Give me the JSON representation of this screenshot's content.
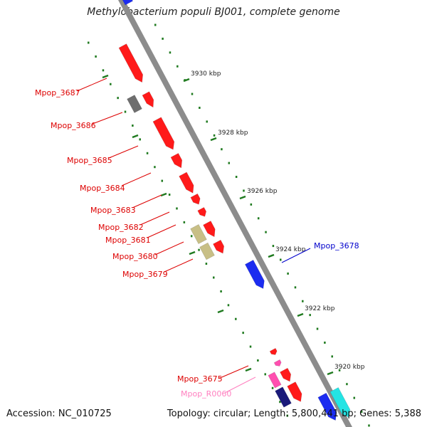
{
  "title": "Methylobacterium populi BJ001, complete genome",
  "footer": {
    "accession": "Accession: NC_010725",
    "summary": "Topology: circular; Length: 5,800,441 bp; Genes: 5,388"
  },
  "colors": {
    "backbone": "#8c8c8c",
    "tick": "#1f7a1f",
    "gene_red": "#ff1a1a",
    "gene_gray": "#6e6e6e",
    "gene_khaki": "#c8bf86",
    "gene_blue": "#1c2cf0",
    "gene_navy": "#1a1a7a",
    "gene_pink": "#ff4fb0",
    "gene_cyan": "#24e4e4",
    "label_red": "#dd0000",
    "label_blue": "#0000cc",
    "label_pink": "#ff80c0"
  },
  "ticks": [
    "3930 kbp",
    "3928 kbp",
    "3926 kbp",
    "3924 kbp",
    "3922 kbp",
    "3920 kbp"
  ],
  "gene_labels": [
    {
      "text": "Mpop_3687",
      "color": "label_red"
    },
    {
      "text": "Mpop_3686",
      "color": "label_red"
    },
    {
      "text": "Mpop_3685",
      "color": "label_red"
    },
    {
      "text": "Mpop_3684",
      "color": "label_red"
    },
    {
      "text": "Mpop_3683",
      "color": "label_red"
    },
    {
      "text": "Mpop_3682",
      "color": "label_red"
    },
    {
      "text": "Mpop_3681",
      "color": "label_red"
    },
    {
      "text": "Mpop_3680",
      "color": "label_red"
    },
    {
      "text": "Mpop_3679",
      "color": "label_red"
    },
    {
      "text": "Mpop_3678",
      "color": "label_blue"
    },
    {
      "text": "Mpop_3675",
      "color": "label_red"
    },
    {
      "text": "Mpop_R0060",
      "color": "label_pink"
    }
  ],
  "genes": [
    {
      "color": "gene_blue"
    },
    {
      "color": "gene_red"
    },
    {
      "color": "gene_gray"
    },
    {
      "color": "gene_red"
    },
    {
      "color": "gene_red"
    },
    {
      "color": "gene_red"
    },
    {
      "color": "gene_red"
    },
    {
      "color": "gene_red"
    },
    {
      "color": "gene_red"
    },
    {
      "color": "gene_khaki"
    },
    {
      "color": "gene_red"
    },
    {
      "color": "gene_khaki"
    },
    {
      "color": "gene_red"
    },
    {
      "color": "gene_blue"
    },
    {
      "color": "gene_red"
    },
    {
      "color": "gene_pink"
    },
    {
      "color": "gene_red"
    },
    {
      "color": "gene_pink"
    },
    {
      "color": "gene_navy"
    },
    {
      "color": "gene_red"
    },
    {
      "color": "gene_blue"
    },
    {
      "color": "gene_cyan"
    }
  ]
}
